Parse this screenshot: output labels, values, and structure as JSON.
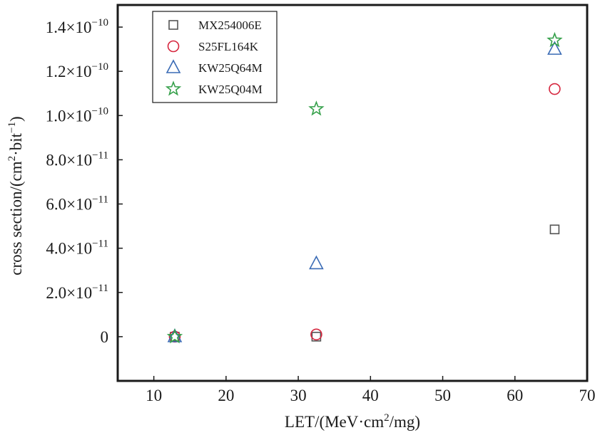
{
  "chart_data": {
    "type": "scatter",
    "xlabel_base": "LET/(MeV·cm",
    "xlabel_sup": "2",
    "xlabel_tail": "/mg)",
    "ylabel_base": "cross section/(cm",
    "ylabel_sup1": "2",
    "ylabel_mid": "·bit",
    "ylabel_sup2": "−1",
    "ylabel_tail": ")",
    "xlim": [
      5,
      70
    ],
    "ylim": [
      -2e-11,
      1.5e-10
    ],
    "x_ticks": [
      10,
      20,
      30,
      40,
      50,
      60,
      70
    ],
    "y_ticks": [
      {
        "value": 0,
        "mantissa": "0",
        "exp": ""
      },
      {
        "value": 2e-11,
        "mantissa": "2.0×10",
        "exp": "−11"
      },
      {
        "value": 4e-11,
        "mantissa": "4.0×10",
        "exp": "−11"
      },
      {
        "value": 6e-11,
        "mantissa": "6.0×10",
        "exp": "−11"
      },
      {
        "value": 8e-11,
        "mantissa": "8.0×10",
        "exp": "−11"
      },
      {
        "value": 1e-10,
        "mantissa": "1.0×10",
        "exp": "−10"
      },
      {
        "value": 1.2e-10,
        "mantissa": "1.2×10",
        "exp": "−10"
      },
      {
        "value": 1.4e-10,
        "mantissa": "1.4×10",
        "exp": "−10"
      }
    ],
    "legend_position": "top-left",
    "series": [
      {
        "name": "MX254006E",
        "marker": "square",
        "color": "#555555",
        "points": [
          [
            12.9,
            0
          ],
          [
            32.5,
            0
          ],
          [
            65.5,
            4.85e-11
          ]
        ]
      },
      {
        "name": "S25FL164K",
        "marker": "circle",
        "color": "#d6263e",
        "points": [
          [
            12.9,
            0
          ],
          [
            32.5,
            1e-12
          ],
          [
            65.5,
            1.12e-10
          ]
        ]
      },
      {
        "name": "KW25Q64M",
        "marker": "triangle",
        "color": "#3a6bb5",
        "points": [
          [
            12.9,
            0
          ],
          [
            32.5,
            3.3e-11
          ],
          [
            65.5,
            1.3e-10
          ]
        ]
      },
      {
        "name": "KW25Q04M",
        "marker": "star",
        "color": "#35a04a",
        "points": [
          [
            12.9,
            0
          ],
          [
            32.5,
            1.03e-10
          ],
          [
            65.5,
            1.34e-10
          ]
        ]
      }
    ]
  }
}
